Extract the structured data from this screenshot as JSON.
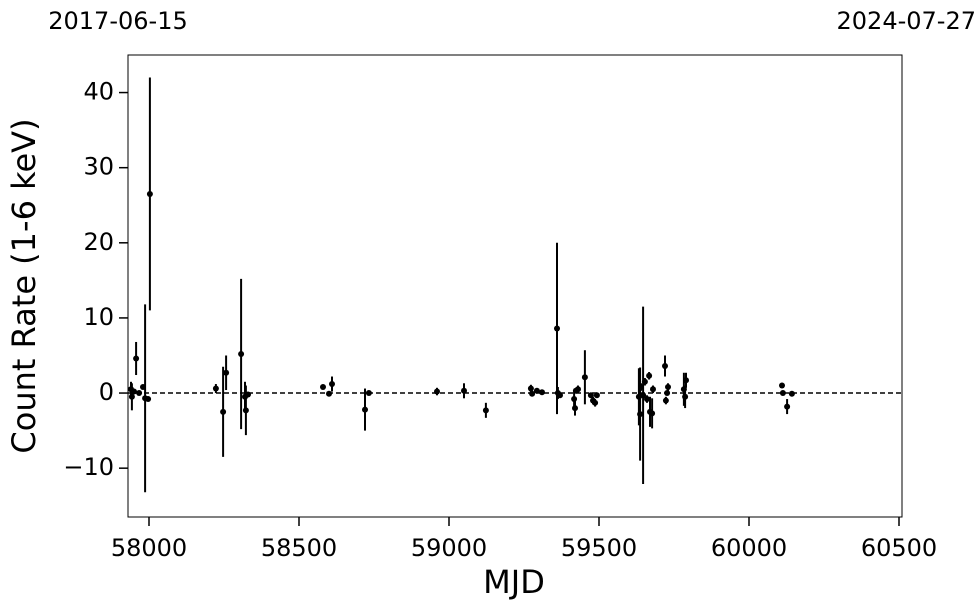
{
  "chart_data": {
    "type": "scatter",
    "top_left_label": "2017-06-15",
    "top_right_label": "2024-07-27",
    "x_label": "MJD",
    "y_label": "Count Rate (1-6 keV)",
    "xlim": [
      57930,
      60510
    ],
    "ylim": [
      -16.5,
      45
    ],
    "xticks": [
      58000,
      58500,
      59000,
      59500,
      60000,
      60500
    ],
    "yticks": [
      {
        "value": -10,
        "label": "−10"
      },
      0,
      10,
      20,
      30,
      40
    ],
    "hline": 0,
    "x": [
      57940,
      57943,
      57950,
      57957,
      57967,
      57980,
      57987,
      57997,
      58003,
      58223,
      58247,
      58257,
      58307,
      58320,
      58323,
      58330,
      58580,
      58600,
      58610,
      58720,
      58733,
      58960,
      59050,
      59123,
      59273,
      59277,
      59293,
      59310,
      59360,
      59363,
      59370,
      59417,
      59420,
      59423,
      59430,
      59453,
      59473,
      59480,
      59487,
      59493,
      59633,
      59637,
      59640,
      59647,
      59653,
      59660,
      59667,
      59670,
      59677,
      59680,
      59720,
      59723,
      59727,
      59730,
      59783,
      59787,
      59790,
      60110,
      60113,
      60127,
      60143
    ],
    "series": [
      {
        "color": "#000000",
        "values": [
          0.5,
          -0.5,
          0.2,
          4.6,
          0,
          0.8,
          -0.7,
          -0.8,
          26.5,
          0.6,
          -2.5,
          2.7,
          5.2,
          -0.5,
          -2.3,
          -0.2,
          0.8,
          -0.1,
          1.2,
          -2.2,
          0,
          0.2,
          0.3,
          -2.3,
          0.6,
          -0.1,
          0.3,
          0.1,
          8.6,
          0,
          -0.3,
          -0.8,
          -2,
          0.3,
          0.5,
          2.1,
          -0.3,
          -1,
          -1.3,
          -0.3,
          -0.5,
          -2.8,
          0.8,
          -0.3,
          1.5,
          -0.8,
          2.3,
          -2.5,
          -2.7,
          0.5,
          3.6,
          -1,
          0,
          0.8,
          0.5,
          -0.5,
          1.7,
          1,
          0,
          -1.8,
          -0.1
        ],
        "errors": [
          1,
          1.8,
          0.3,
          2.2,
          0.3,
          0.3,
          12.5,
          0.3,
          15.5,
          0.6,
          6,
          2.3,
          10,
          2,
          3.3,
          0.3,
          0.3,
          0.3,
          1,
          2.8,
          0.3,
          0.5,
          1,
          1,
          0.5,
          0.3,
          0.3,
          0.3,
          11.4,
          0.8,
          0.3,
          1.2,
          1,
          0.3,
          0.5,
          3.6,
          0.3,
          0.5,
          0.5,
          0.3,
          3.8,
          6.2,
          0.5,
          11.8,
          0.5,
          0.5,
          0.5,
          2,
          2,
          0.5,
          1.4,
          0.5,
          0.3,
          0.5,
          2.2,
          1.5,
          1,
          0.3,
          0.3,
          1,
          0.3
        ]
      }
    ]
  }
}
